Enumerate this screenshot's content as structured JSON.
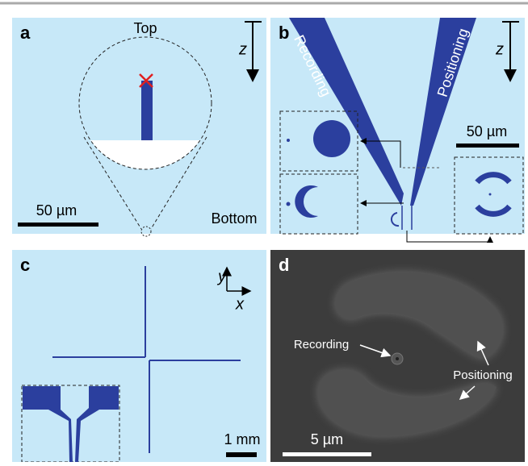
{
  "panels": {
    "a": {
      "label": "a",
      "top": "Top",
      "bottom": "Bottom",
      "axis": "z",
      "scale": "50 µm"
    },
    "b": {
      "label": "b",
      "left_probe": "Recording",
      "right_probe": "Positioning",
      "axis": "z",
      "scale": "50 µm"
    },
    "c": {
      "label": "c",
      "y_axis": "y",
      "x_axis": "x",
      "scale": "1 mm"
    },
    "d": {
      "label": "d",
      "recording": "Recording",
      "positioning": "Positioning",
      "scale": "5 µm"
    }
  }
}
